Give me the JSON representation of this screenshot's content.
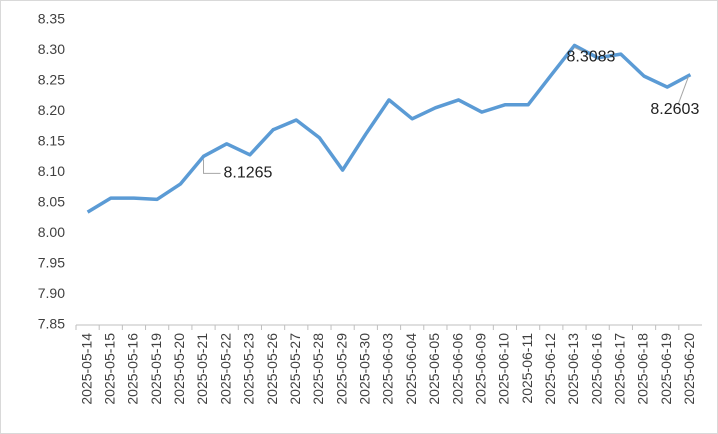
{
  "chart_data": {
    "type": "line",
    "categories": [
      "2025-05-14",
      "2025-05-15",
      "2025-05-16",
      "2025-05-19",
      "2025-05-20",
      "2025-05-21",
      "2025-05-22",
      "2025-05-23",
      "2025-05-26",
      "2025-05-27",
      "2025-05-28",
      "2025-05-29",
      "2025-05-30",
      "2025-06-03",
      "2025-06-04",
      "2025-06-05",
      "2025-06-06",
      "2025-06-09",
      "2025-06-10",
      "2025-06-11",
      "2025-06-12",
      "2025-06-13",
      "2025-06-16",
      "2025-06-17",
      "2025-06-18",
      "2025-06-19",
      "2025-06-20"
    ],
    "values": [
      8.035,
      8.058,
      8.058,
      8.056,
      8.081,
      8.1265,
      8.147,
      8.129,
      8.17,
      8.186,
      8.157,
      8.104,
      8.163,
      8.219,
      8.188,
      8.206,
      8.219,
      8.199,
      8.211,
      8.211,
      8.26,
      8.3083,
      8.288,
      8.294,
      8.258,
      8.24,
      8.2603
    ],
    "value_labels": [
      null,
      null,
      null,
      null,
      null,
      "8.1265",
      null,
      null,
      null,
      null,
      null,
      null,
      null,
      null,
      null,
      null,
      null,
      null,
      null,
      null,
      null,
      "8.3083",
      null,
      null,
      null,
      null,
      "8.2603"
    ],
    "color": "#5b9bd5",
    "ylim": [
      7.85,
      8.35
    ],
    "yticks": [
      {
        "value": 7.85,
        "label": "7.85"
      },
      {
        "value": 7.9,
        "label": "7.90"
      },
      {
        "value": 7.95,
        "label": "7.95"
      },
      {
        "value": 8,
        "label": "8.00"
      },
      {
        "value": 8.05,
        "label": "8.05"
      },
      {
        "value": 8.1,
        "label": "8.10"
      },
      {
        "value": 8.15,
        "label": "8.15"
      },
      {
        "value": 8.2,
        "label": "8.20"
      },
      {
        "value": 8.25,
        "label": "8.25"
      },
      {
        "value": 8.3,
        "label": "8.30"
      },
      {
        "value": 8.35,
        "label": "8.35"
      }
    ],
    "grid": false
  }
}
